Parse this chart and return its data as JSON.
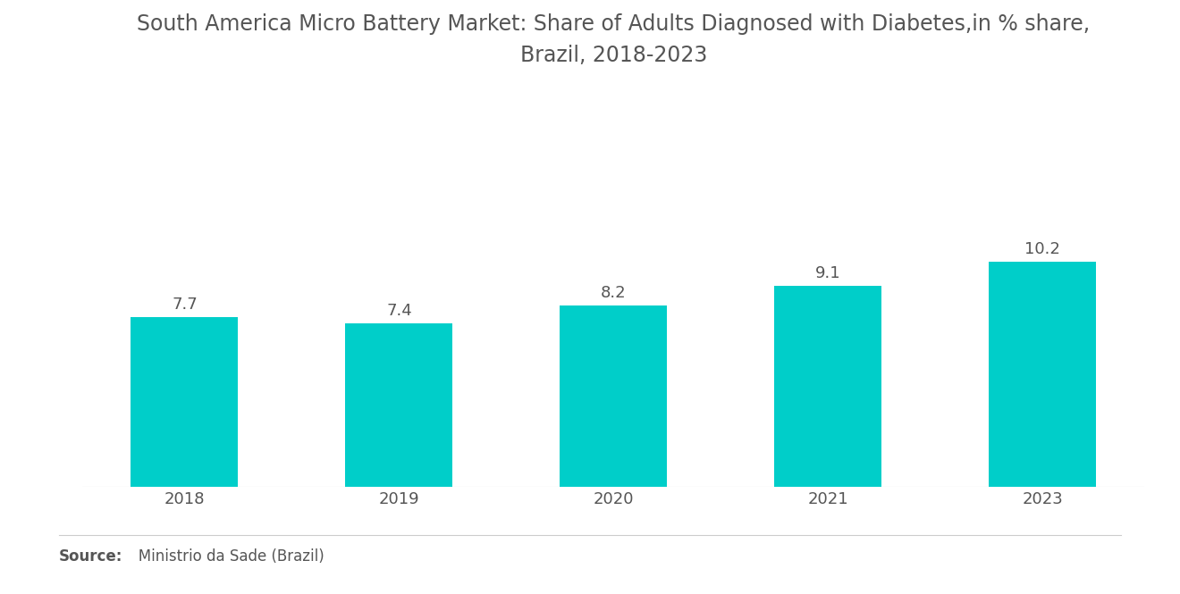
{
  "title": "South America Micro Battery Market: Share of Adults Diagnosed with Diabetes,in % share,\nBrazil, 2018-2023",
  "categories": [
    "2018",
    "2019",
    "2020",
    "2021",
    "2023"
  ],
  "values": [
    7.7,
    7.4,
    8.2,
    9.1,
    10.2
  ],
  "bar_color": "#00CEC9",
  "label_color": "#555555",
  "title_color": "#555555",
  "source_label_bold": "Source:",
  "source_text": "   Ministrio da Sade (Brazil)",
  "background_color": "#ffffff",
  "bar_width": 0.5,
  "ylim": [
    0,
    18
  ],
  "title_fontsize": 17,
  "label_fontsize": 13,
  "tick_fontsize": 13,
  "source_fontsize": 12,
  "separator_color": "#cccccc"
}
